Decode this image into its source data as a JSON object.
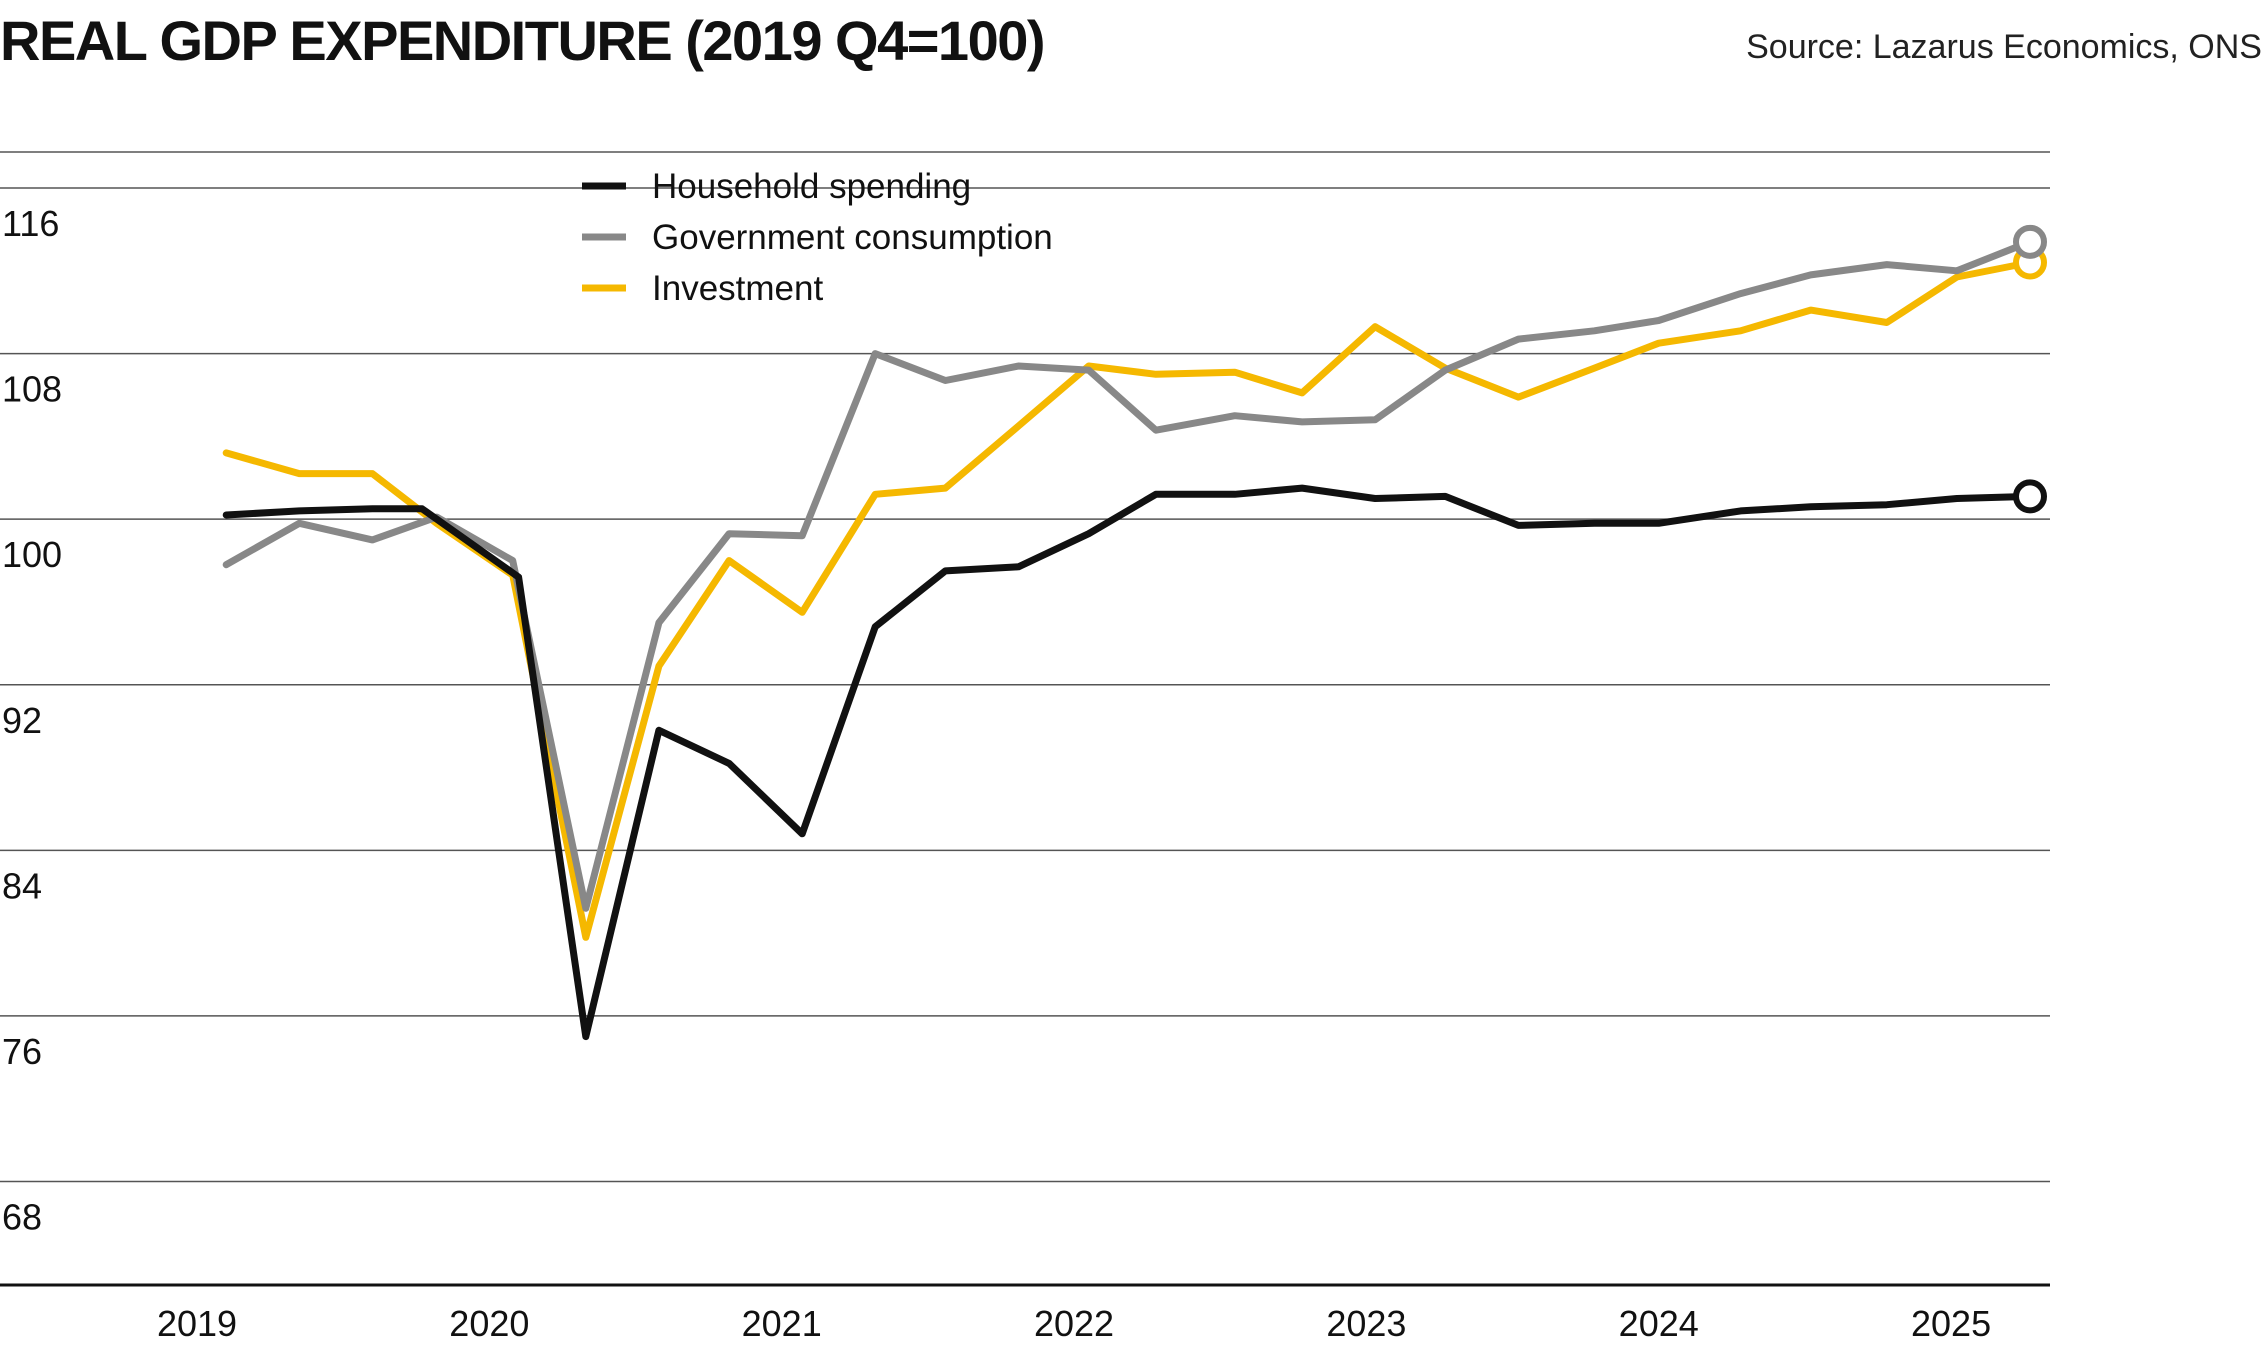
{
  "header": {
    "title": "REAL GDP EXPENDITURE (2019 Q4=100)",
    "source": "Source: Lazarus Economics, ONS"
  },
  "chart_data": {
    "type": "line",
    "title": "REAL GDP EXPENDITURE (2019 Q4=100)",
    "xlabel": "",
    "ylabel": "",
    "xlim": [
      2019.0,
      2025.27
    ],
    "ylim": [
      63,
      116
    ],
    "y_ticks": [
      68,
      76,
      84,
      92,
      100,
      108,
      116
    ],
    "x_ticks": [
      2019,
      2020,
      2021,
      2022,
      2023,
      2024,
      2025
    ],
    "grid": "horizontal",
    "legend_position": "top-center",
    "series": [
      {
        "name": "Household spending",
        "color": "#111111",
        "end_marker": true,
        "x": [
          2019.1,
          2019.35,
          2019.6,
          2019.77,
          2020.1,
          2020.33,
          2020.58,
          2020.82,
          2021.07,
          2021.32,
          2021.56,
          2021.81,
          2022.05,
          2022.28,
          2022.55,
          2022.78,
          2023.03,
          2023.27,
          2023.52,
          2023.78,
          2024.0,
          2024.28,
          2024.52,
          2024.78,
          2025.02,
          2025.27
        ],
        "values": [
          100.2,
          100.4,
          100.5,
          100.5,
          97.2,
          75.0,
          89.8,
          88.2,
          84.8,
          94.8,
          97.5,
          97.7,
          99.3,
          101.2,
          101.2,
          101.5,
          101.0,
          101.1,
          99.7,
          99.8,
          99.8,
          100.4,
          100.6,
          100.7,
          101.0,
          101.1
        ],
        "end_value": 101.1
      },
      {
        "name": "Government consumption",
        "color": "#888888",
        "end_marker": true,
        "x": [
          2019.1,
          2019.35,
          2019.6,
          2019.82,
          2020.08,
          2020.33,
          2020.58,
          2020.82,
          2021.07,
          2021.32,
          2021.56,
          2021.81,
          2022.05,
          2022.28,
          2022.55,
          2022.78,
          2023.03,
          2023.27,
          2023.52,
          2023.78,
          2024.0,
          2024.28,
          2024.52,
          2024.78,
          2025.02,
          2025.27
        ],
        "values": [
          97.8,
          99.8,
          99.0,
          100.1,
          98.0,
          81.2,
          95.0,
          99.3,
          99.2,
          108.0,
          106.7,
          107.4,
          107.2,
          104.3,
          105.0,
          104.7,
          104.8,
          107.2,
          108.7,
          109.1,
          109.6,
          110.9,
          111.8,
          112.3,
          112.0,
          113.4
        ],
        "end_value": 113.4
      },
      {
        "name": "Investment",
        "color": "#f5b800",
        "end_marker": true,
        "x": [
          2019.1,
          2019.35,
          2019.6,
          2019.82,
          2020.08,
          2020.33,
          2020.58,
          2020.82,
          2021.07,
          2021.32,
          2021.56,
          2021.81,
          2022.05,
          2022.28,
          2022.55,
          2022.78,
          2023.03,
          2023.27,
          2023.52,
          2023.78,
          2024.0,
          2024.28,
          2024.52,
          2024.78,
          2025.02,
          2025.27
        ],
        "values": [
          103.2,
          102.2,
          102.2,
          99.8,
          97.3,
          79.8,
          92.9,
          98.0,
          95.5,
          101.2,
          101.5,
          104.5,
          107.4,
          107.0,
          107.1,
          106.1,
          109.3,
          107.3,
          105.9,
          107.3,
          108.5,
          109.1,
          110.1,
          109.5,
          111.7,
          112.4
        ],
        "end_value": 112.4
      }
    ]
  }
}
